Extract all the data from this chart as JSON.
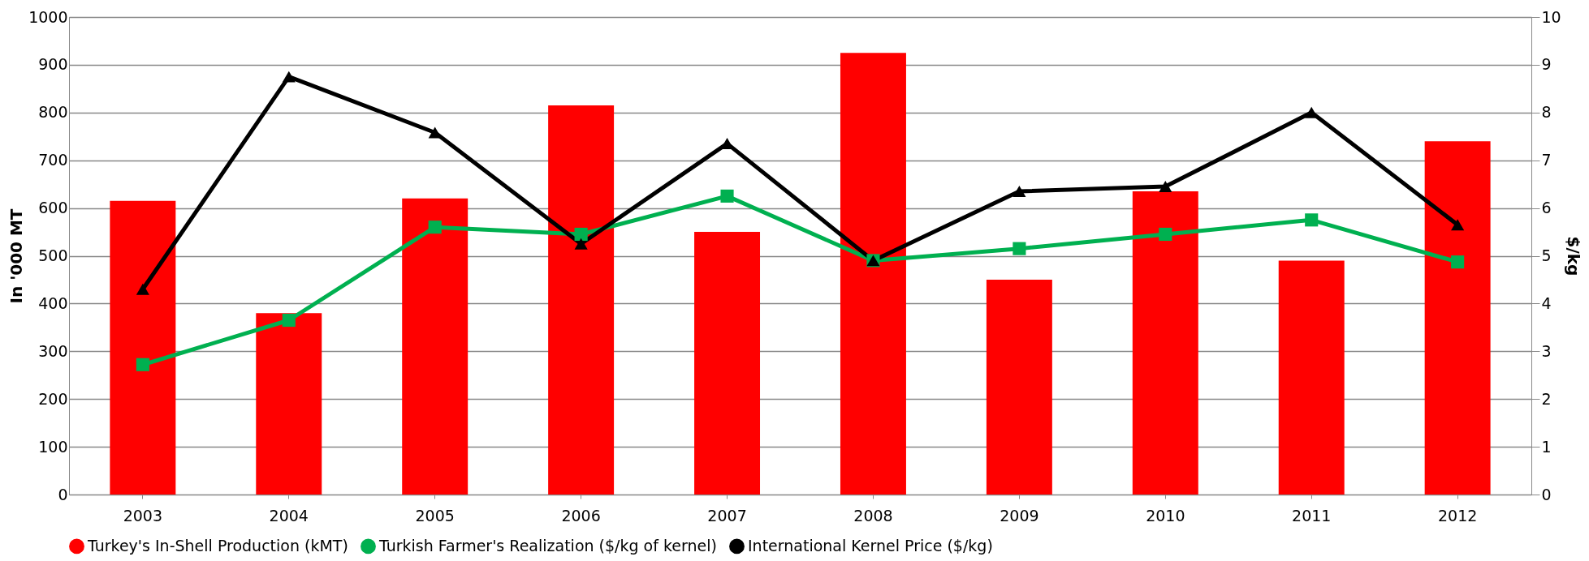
{
  "chart_data": {
    "type": "bar",
    "ylabel": "In '000 MT",
    "y2label": "$/kg",
    "categories": [
      "2003",
      "2004",
      "2005",
      "2006",
      "2007",
      "2008",
      "2009",
      "2010",
      "2011",
      "2012"
    ],
    "series": [
      {
        "name": "Turkey's In-Shell Production (kMT)",
        "color": "#ff0000",
        "values": [
          615,
          380,
          620,
          815,
          550,
          925,
          450,
          635,
          490,
          740
        ]
      },
      {
        "name": "Turkish Farmer's Realization ($/kg of kernel)",
        "type": "line",
        "axis": "y2",
        "color": "#00b050",
        "marker": "square",
        "values": [
          2.72,
          3.65,
          5.6,
          5.45,
          6.25,
          4.9,
          5.15,
          5.45,
          5.75,
          4.87
        ]
      },
      {
        "name": "International Kernel Price ($/kg)",
        "type": "line",
        "axis": "y2",
        "color": "#000000",
        "marker": "triangle",
        "values": [
          4.3,
          8.75,
          7.58,
          5.25,
          7.35,
          4.9,
          6.35,
          6.45,
          8.0,
          5.65
        ]
      }
    ],
    "ylim": [
      0,
      1000
    ],
    "yticks": [
      0,
      100,
      200,
      300,
      400,
      500,
      600,
      700,
      800,
      900,
      1000
    ],
    "y2lim": [
      0,
      10
    ],
    "y2ticks": [
      0,
      1,
      2,
      3,
      4,
      5,
      6,
      7,
      8,
      9,
      10
    ],
    "grid": "y",
    "legend": "bottom"
  }
}
